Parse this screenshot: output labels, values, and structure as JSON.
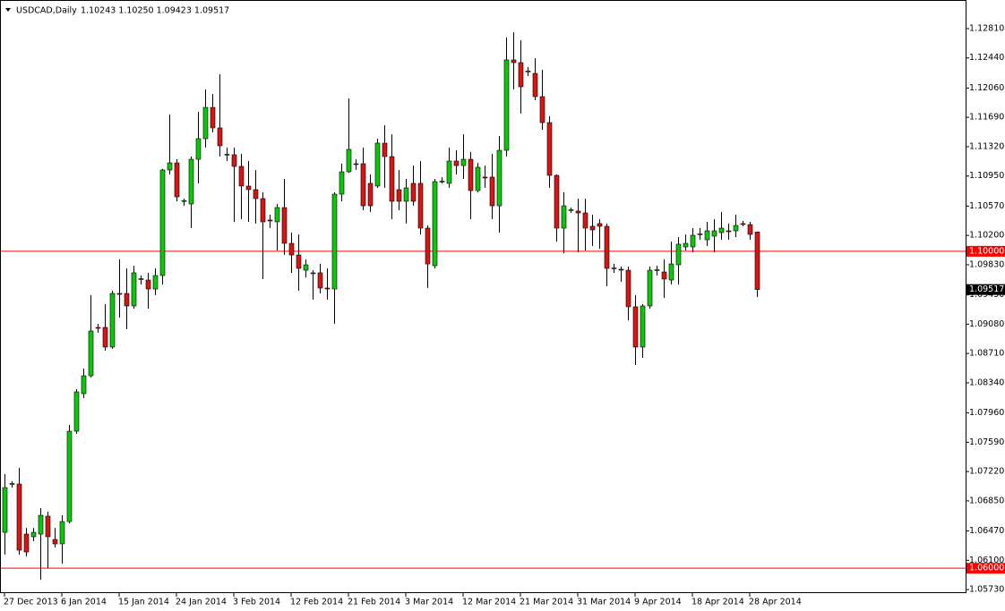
{
  "chart_data": {
    "type": "candlestick",
    "title": "USDCAD,Daily",
    "ohlc_label": "1.10243 1.10250 1.09423 1.09517",
    "up_color": "#00cc00",
    "down_color": "#e01010",
    "wick_color": "#000000",
    "categories": [
      "27 Dec 2013",
      null,
      null,
      null,
      null,
      null,
      null,
      null,
      "6 Jan 2014",
      null,
      null,
      null,
      null,
      null,
      null,
      null,
      "15 Jan 2014",
      null,
      null,
      null,
      null,
      null,
      null,
      null,
      "24 Jan 2014",
      null,
      null,
      null,
      null,
      null,
      null,
      null,
      "3 Feb 2014",
      null,
      null,
      null,
      null,
      null,
      null,
      null,
      "12 Feb 2014",
      null,
      null,
      null,
      null,
      null,
      null,
      null,
      "21 Feb 2014",
      null,
      null,
      null,
      null,
      null,
      null,
      null,
      "3 Mar 2014",
      null,
      null,
      null,
      null,
      null,
      null,
      null,
      "12 Mar 2014",
      null,
      null,
      null,
      null,
      null,
      null,
      null,
      "21 Mar 2014",
      null,
      null,
      null,
      null,
      null,
      null,
      null,
      "31 Mar 2014",
      null,
      null,
      null,
      null,
      null,
      null,
      null,
      "9 Apr 2014",
      null,
      null,
      null,
      null,
      null,
      null,
      null,
      "18 Apr 2014",
      null,
      null,
      null,
      null,
      null,
      null,
      null,
      "28 Apr 2014",
      null
    ],
    "open": [
      1.06453,
      1.07063,
      1.07063,
      1.06431,
      1.06397,
      1.06431,
      1.06657,
      1.06363,
      1.06307,
      1.06589,
      1.07729,
      1.08203,
      1.08429,
      1.09039,
      1.09039,
      1.08791,
      1.09468,
      1.09468,
      1.0931,
      1.09649,
      1.09637,
      1.09524,
      1.09694,
      1.11026,
      1.11116,
      1.10631,
      1.10597,
      1.11161,
      1.11421,
      1.11816,
      1.11557,
      1.11218,
      1.11218,
      1.11071,
      1.10823,
      1.10778,
      1.10665,
      1.10394,
      1.10371,
      1.10552,
      1.101,
      1.09953,
      1.09761,
      1.09728,
      1.09728,
      1.09536,
      1.09524,
      1.10721,
      1.11003,
      1.11105,
      1.11105,
      1.10857,
      1.10823,
      1.11365,
      1.11195,
      1.10778,
      1.10631,
      1.10857,
      1.10857,
      1.10292,
      1.09818,
      1.10879,
      1.10857,
      1.11139,
      1.11082,
      1.11161,
      1.10766,
      1.10936,
      1.10936,
      1.10574,
      1.11274,
      1.12415,
      1.12381,
      1.12268,
      1.12245,
      1.11952,
      1.11624,
      1.10958,
      1.10292,
      1.10518,
      1.10507,
      1.10484,
      1.10315,
      1.10349,
      1.10315,
      1.09784,
      1.09773,
      1.09761,
      1.09299,
      1.08791,
      1.0931,
      1.09761,
      1.09739,
      1.09637,
      1.09829,
      1.10055,
      1.10055,
      1.10213,
      1.10145,
      1.1019,
      1.10236,
      1.10258,
      1.10258,
      1.10349,
      1.10337,
      1.10243
    ],
    "high": [
      1.07187,
      1.07097,
      1.07266,
      1.0651,
      1.0651,
      1.06758,
      1.06713,
      1.0651,
      1.06668,
      1.07808,
      1.0826,
      1.0852,
      1.09445,
      1.09084,
      1.09332,
      1.09502,
      1.09897,
      1.09784,
      1.09818,
      1.09694,
      1.09728,
      1.09784,
      1.1104,
      1.11726,
      1.11161,
      1.10665,
      1.11195,
      1.1176,
      1.12042,
      1.11986,
      1.12234,
      1.11308,
      1.11308,
      1.11229,
      1.11139,
      1.11026,
      1.10744,
      1.10461,
      1.10597,
      1.10913,
      1.10236,
      1.10213,
      1.09897,
      1.09761,
      1.0984,
      1.09784,
      1.10744,
      1.11105,
      1.11929,
      1.11161,
      1.11308,
      1.10969,
      1.11421,
      1.1159,
      1.11478,
      1.11026,
      1.10913,
      1.11082,
      1.11139,
      1.10326,
      1.10913,
      1.10936,
      1.11308,
      1.11274,
      1.11478,
      1.11252,
      1.11116,
      1.11082,
      1.11229,
      1.11455,
      1.12697,
      1.12765,
      1.12663,
      1.12324,
      1.12437,
      1.1229,
      1.11703,
      1.10969,
      1.10744,
      1.10552,
      1.10665,
      1.10665,
      1.10461,
      1.10405,
      1.10349,
      1.0984,
      1.09807,
      1.09807,
      1.09445,
      1.09332,
      1.09807,
      1.09818,
      1.09897,
      1.10123,
      1.10179,
      1.10213,
      1.10292,
      1.10292,
      1.10371,
      1.10405,
      1.10495,
      1.10349,
      1.10461,
      1.10382,
      1.10371,
      1.1025
    ],
    "low": [
      1.06171,
      1.07018,
      1.06171,
      1.06149,
      1.06341,
      1.05855,
      1.06002,
      1.06262,
      1.06058,
      1.06566,
      1.07695,
      1.08147,
      1.08407,
      1.08971,
      1.08745,
      1.08768,
      1.09163,
      1.09016,
      1.09276,
      1.09581,
      1.09276,
      1.09445,
      1.09581,
      1.10969,
      1.10631,
      1.10574,
      1.10292,
      1.10857,
      1.11308,
      1.115,
      1.11195,
      1.11139,
      1.10371,
      1.10405,
      1.10371,
      1.10349,
      1.09649,
      1.10292,
      1.1001,
      1.09953,
      1.09728,
      1.09502,
      1.09671,
      1.09389,
      1.09468,
      1.09389,
      1.09084,
      1.10631,
      1.1099,
      1.11026,
      1.10518,
      1.10495,
      1.108,
      1.108,
      1.10405,
      1.10518,
      1.10349,
      1.10574,
      1.10213,
      1.09536,
      1.09784,
      1.10857,
      1.108,
      1.10969,
      1.10913,
      1.10405,
      1.10744,
      1.108,
      1.10405,
      1.10236,
      1.11195,
      1.12042,
      1.11737,
      1.12211,
      1.11907,
      1.11534,
      1.108,
      1.10123,
      1.09976,
      1.10484,
      1.09987,
      1.1001,
      1.10066,
      1.10032,
      1.09558,
      1.09728,
      1.09615,
      1.09129,
      1.08565,
      1.08655,
      1.09276,
      1.09694,
      1.09411,
      1.09581,
      1.09581,
      1.1001,
      1.09987,
      1.10145,
      1.10066,
      1.09987,
      1.10145,
      1.10145,
      1.10179,
      1.10315,
      1.10145,
      1.09423
    ],
    "close": [
      1.07018,
      1.0707,
      1.06228,
      1.06205,
      1.06453,
      1.06668,
      1.06397,
      1.06307,
      1.06589,
      1.07729,
      1.08226,
      1.08429,
      1.08994,
      1.09028,
      1.08791,
      1.09468,
      1.0946,
      1.0931,
      1.09728,
      1.09655,
      1.09524,
      1.09694,
      1.11026,
      1.11116,
      1.10687,
      1.1064,
      1.11161,
      1.11421,
      1.11816,
      1.11557,
      1.11331,
      1.11225,
      1.11071,
      1.10823,
      1.10778,
      1.10665,
      1.10371,
      1.1039,
      1.10552,
      1.101,
      1.09953,
      1.09784,
      1.09829,
      1.0972,
      1.09536,
      1.09524,
      1.10721,
      1.11003,
      1.11286,
      1.111,
      1.10574,
      1.10574,
      1.11365,
      1.11195,
      1.10631,
      1.10631,
      1.108,
      1.10631,
      1.10292,
      1.0984,
      1.10879,
      1.10885,
      1.11139,
      1.11082,
      1.11161,
      1.10766,
      1.1106,
      1.1093,
      1.10574,
      1.11274,
      1.12415,
      1.12381,
      1.12076,
      1.12275,
      1.11952,
      1.11624,
      1.10958,
      1.10292,
      1.10574,
      1.10525,
      1.10484,
      1.10292,
      1.1027,
      1.10315,
      1.09784,
      1.0979,
      1.0977,
      1.09299,
      1.08791,
      1.0931,
      1.09761,
      1.09768,
      1.09649,
      1.0984,
      1.10089,
      1.101,
      1.10202,
      1.1022,
      1.10258,
      1.10258,
      1.10292,
      1.1025,
      1.10326,
      1.10345,
      1.10213,
      1.09517
    ],
    "ylim": [
      1.05686,
      1.13171
    ],
    "yticks": [
      {
        "value": 1.1281,
        "label": "1.12810"
      },
      {
        "value": 1.1244,
        "label": "1.12440"
      },
      {
        "value": 1.1206,
        "label": "1.12060"
      },
      {
        "value": 1.1169,
        "label": "1.11690"
      },
      {
        "value": 1.1132,
        "label": "1.11320"
      },
      {
        "value": 1.1095,
        "label": "1.10950"
      },
      {
        "value": 1.1057,
        "label": "1.10570"
      },
      {
        "value": 1.102,
        "label": "1.10200"
      },
      {
        "value": 1.0983,
        "label": "1.09830"
      },
      {
        "value": 1.0945,
        "label": "1.09450"
      },
      {
        "value": 1.0908,
        "label": "1.09080"
      },
      {
        "value": 1.0871,
        "label": "1.08710"
      },
      {
        "value": 1.0834,
        "label": "1.08340"
      },
      {
        "value": 1.0796,
        "label": "1.07960"
      },
      {
        "value": 1.0759,
        "label": "1.07590"
      },
      {
        "value": 1.0722,
        "label": "1.07220"
      },
      {
        "value": 1.0685,
        "label": "1.06850"
      },
      {
        "value": 1.0647,
        "label": "1.06470"
      },
      {
        "value": 1.061,
        "label": "1.06100"
      },
      {
        "value": 1.0573,
        "label": "1.05730"
      }
    ],
    "hlines": [
      {
        "value": 1.1,
        "label": "1.10000",
        "color": "#ff0000"
      },
      {
        "value": 1.06,
        "label": "1.06000",
        "color": "#ff0000"
      }
    ],
    "price_label": {
      "value": 1.09517,
      "label": "1.09517",
      "color": "#000000"
    }
  }
}
